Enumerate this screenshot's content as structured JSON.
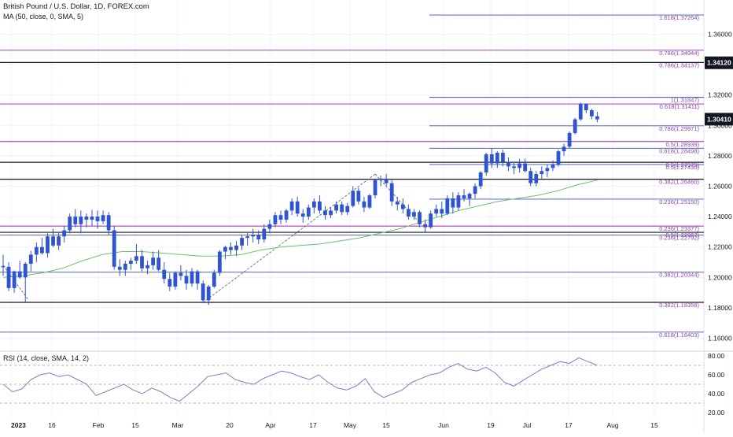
{
  "header": {
    "title": "British Pound / U.S. Dollar, 1D, FOREX.com",
    "ma_label": "MA (50, close, 0, SMA, 5)",
    "rsi_label": "RSI (14, close, SMA, 14, 2)"
  },
  "colors": {
    "candle": "#2f54d1",
    "ma": "#6fbf6f",
    "rsi": "#7b7fc6",
    "fib_line": "#9c27b0",
    "fib_text": "#8e44ad",
    "blue_line": "#3f51b5",
    "black_line": "#131722",
    "grid": "#f0f3fa",
    "axis_text": "#131722",
    "price_tag_bg": "#131722"
  },
  "chart_data": {
    "type": "candlestick",
    "ylim": [
      1.152,
      1.3825
    ],
    "y_ticks": [
      "1.36000",
      "1.34000",
      "1.32000",
      "1.30000",
      "1.28000",
      "1.26000",
      "1.24000",
      "1.22000",
      "1.20000",
      "1.18000",
      "1.16000"
    ],
    "x_ticks": [
      "2023",
      "16",
      "Feb",
      "15",
      "Mar",
      "20",
      "Apr",
      "17",
      "May",
      "15",
      "Jun",
      "19",
      "Jul",
      "17",
      "Aug",
      "15"
    ],
    "last_price": "1.30410",
    "last_price_value": 1.3041,
    "tag_price": "1.34120",
    "tag_price_value": 1.3412,
    "ohlc": [
      [
        1.2075,
        1.215,
        1.201,
        1.207
      ],
      [
        1.207,
        1.21,
        1.191,
        1.193
      ],
      [
        1.193,
        1.2045,
        1.19,
        1.204
      ],
      [
        1.204,
        1.211,
        1.199,
        1.2
      ],
      [
        1.2,
        1.21,
        1.184,
        1.209
      ],
      [
        1.209,
        1.2175,
        1.204,
        1.215
      ],
      [
        1.215,
        1.223,
        1.21,
        1.22
      ],
      [
        1.22,
        1.226,
        1.215,
        1.216
      ],
      [
        1.216,
        1.229,
        1.213,
        1.227
      ],
      [
        1.227,
        1.232,
        1.22,
        1.221
      ],
      [
        1.221,
        1.23,
        1.218,
        1.227
      ],
      [
        1.227,
        1.234,
        1.223,
        1.231
      ],
      [
        1.231,
        1.242,
        1.229,
        1.24
      ],
      [
        1.24,
        1.245,
        1.233,
        1.235
      ],
      [
        1.235,
        1.244,
        1.229,
        1.24
      ],
      [
        1.24,
        1.242,
        1.233,
        1.238
      ],
      [
        1.238,
        1.2445,
        1.234,
        1.24
      ],
      [
        1.24,
        1.244,
        1.232,
        1.237
      ],
      [
        1.237,
        1.244,
        1.235,
        1.241
      ],
      [
        1.241,
        1.243,
        1.228,
        1.231
      ],
      [
        1.231,
        1.234,
        1.205,
        1.207
      ],
      [
        1.207,
        1.212,
        1.201,
        1.205
      ],
      [
        1.205,
        1.211,
        1.201,
        1.209
      ],
      [
        1.209,
        1.213,
        1.205,
        1.211
      ],
      [
        1.211,
        1.222,
        1.209,
        1.214
      ],
      [
        1.214,
        1.218,
        1.204,
        1.206
      ],
      [
        1.206,
        1.211,
        1.202,
        1.208
      ],
      [
        1.208,
        1.217,
        1.205,
        1.213
      ],
      [
        1.213,
        1.218,
        1.204,
        1.205
      ],
      [
        1.205,
        1.21,
        1.196,
        1.199
      ],
      [
        1.199,
        1.203,
        1.191,
        1.194
      ],
      [
        1.194,
        1.204,
        1.192,
        1.203
      ],
      [
        1.203,
        1.208,
        1.198,
        1.201
      ],
      [
        1.201,
        1.205,
        1.192,
        1.196
      ],
      [
        1.196,
        1.206,
        1.194,
        1.204
      ],
      [
        1.204,
        1.205,
        1.192,
        1.196
      ],
      [
        1.196,
        1.198,
        1.183,
        1.185
      ],
      [
        1.185,
        1.195,
        1.182,
        1.194
      ],
      [
        1.194,
        1.205,
        1.193,
        1.203
      ],
      [
        1.203,
        1.218,
        1.201,
        1.217
      ],
      [
        1.217,
        1.221,
        1.212,
        1.22
      ],
      [
        1.22,
        1.223,
        1.215,
        1.218
      ],
      [
        1.218,
        1.224,
        1.214,
        1.221
      ],
      [
        1.221,
        1.228,
        1.218,
        1.226
      ],
      [
        1.226,
        1.23,
        1.221,
        1.227
      ],
      [
        1.227,
        1.232,
        1.223,
        1.228
      ],
      [
        1.228,
        1.231,
        1.222,
        1.225
      ],
      [
        1.225,
        1.235,
        1.223,
        1.232
      ],
      [
        1.232,
        1.238,
        1.229,
        1.235
      ],
      [
        1.235,
        1.243,
        1.233,
        1.241
      ],
      [
        1.241,
        1.244,
        1.235,
        1.238
      ],
      [
        1.238,
        1.245,
        1.236,
        1.244
      ],
      [
        1.244,
        1.252,
        1.241,
        1.25
      ],
      [
        1.25,
        1.253,
        1.24,
        1.242
      ],
      [
        1.242,
        1.245,
        1.236,
        1.24
      ],
      [
        1.24,
        1.248,
        1.238,
        1.246
      ],
      [
        1.246,
        1.252,
        1.242,
        1.25
      ],
      [
        1.25,
        1.254,
        1.242,
        1.244
      ],
      [
        1.244,
        1.247,
        1.238,
        1.241
      ],
      [
        1.241,
        1.246,
        1.239,
        1.244
      ],
      [
        1.244,
        1.25,
        1.242,
        1.248
      ],
      [
        1.248,
        1.25,
        1.241,
        1.243
      ],
      [
        1.243,
        1.249,
        1.241,
        1.247
      ],
      [
        1.247,
        1.26,
        1.246,
        1.257
      ],
      [
        1.257,
        1.259,
        1.248,
        1.25
      ],
      [
        1.25,
        1.253,
        1.243,
        1.246
      ],
      [
        1.246,
        1.255,
        1.245,
        1.254
      ],
      [
        1.254,
        1.265,
        1.252,
        1.264
      ],
      [
        1.264,
        1.267,
        1.26,
        1.265
      ],
      [
        1.265,
        1.268,
        1.26,
        1.262
      ],
      [
        1.262,
        1.264,
        1.247,
        1.25
      ],
      [
        1.25,
        1.253,
        1.244,
        1.248
      ],
      [
        1.248,
        1.252,
        1.242,
        1.245
      ],
      [
        1.245,
        1.248,
        1.238,
        1.24
      ],
      [
        1.24,
        1.245,
        1.238,
        1.243
      ],
      [
        1.243,
        1.244,
        1.233,
        1.235
      ],
      [
        1.235,
        1.238,
        1.23,
        1.233
      ],
      [
        1.233,
        1.244,
        1.232,
        1.242
      ],
      [
        1.242,
        1.248,
        1.24,
        1.245
      ],
      [
        1.245,
        1.25,
        1.239,
        1.242
      ],
      [
        1.242,
        1.254,
        1.241,
        1.252
      ],
      [
        1.252,
        1.256,
        1.242,
        1.246
      ],
      [
        1.246,
        1.256,
        1.244,
        1.254
      ],
      [
        1.254,
        1.258,
        1.25,
        1.252
      ],
      [
        1.252,
        1.256,
        1.247,
        1.255
      ],
      [
        1.255,
        1.262,
        1.252,
        1.26
      ],
      [
        1.26,
        1.27,
        1.258,
        1.269
      ],
      [
        1.269,
        1.282,
        1.267,
        1.281
      ],
      [
        1.281,
        1.285,
        1.272,
        1.275
      ],
      [
        1.275,
        1.283,
        1.272,
        1.282
      ],
      [
        1.282,
        1.284,
        1.273,
        1.276
      ],
      [
        1.276,
        1.279,
        1.27,
        1.273
      ],
      [
        1.273,
        1.276,
        1.268,
        1.272
      ],
      [
        1.272,
        1.278,
        1.269,
        1.275
      ],
      [
        1.275,
        1.278,
        1.269,
        1.27
      ],
      [
        1.27,
        1.272,
        1.26,
        1.262
      ],
      [
        1.262,
        1.27,
        1.26,
        1.268
      ],
      [
        1.268,
        1.273,
        1.265,
        1.27
      ],
      [
        1.27,
        1.274,
        1.266,
        1.272
      ],
      [
        1.272,
        1.277,
        1.27,
        1.274
      ],
      [
        1.274,
        1.284,
        1.273,
        1.283
      ],
      [
        1.283,
        1.288,
        1.28,
        1.286
      ],
      [
        1.286,
        1.296,
        1.285,
        1.295
      ],
      [
        1.295,
        1.305,
        1.294,
        1.304
      ],
      [
        1.304,
        1.315,
        1.303,
        1.314
      ],
      [
        1.314,
        1.3145,
        1.308,
        1.31
      ],
      [
        1.31,
        1.311,
        1.304,
        1.306
      ],
      [
        1.306,
        1.309,
        1.302,
        1.304
      ]
    ],
    "ma50": [
      1.2,
      1.201,
      1.203,
      1.206,
      1.211,
      1.215,
      1.217,
      1.217,
      1.216,
      1.215,
      1.214,
      1.214,
      1.215,
      1.218,
      1.22,
      1.221,
      1.222,
      1.224,
      1.226,
      1.229,
      1.232,
      1.236,
      1.24,
      1.244,
      1.247,
      1.25,
      1.252,
      1.254,
      1.257,
      1.261,
      1.264
    ],
    "rsi": {
      "ylim": [
        15,
        85
      ],
      "ticks": [
        "80.00",
        "60.00",
        "40.00",
        "20.00"
      ],
      "levels": [
        70,
        50,
        30
      ],
      "values": [
        50,
        42,
        45,
        55,
        60,
        62,
        58,
        60,
        55,
        50,
        38,
        42,
        46,
        50,
        44,
        40,
        46,
        42,
        36,
        32,
        40,
        48,
        58,
        60,
        62,
        55,
        52,
        50,
        56,
        60,
        64,
        62,
        58,
        55,
        60,
        52,
        46,
        44,
        48,
        56,
        42,
        36,
        40,
        44,
        52,
        56,
        60,
        62,
        68,
        72,
        66,
        64,
        68,
        62,
        52,
        48,
        54,
        60,
        66,
        70,
        74,
        72,
        78,
        74,
        70
      ]
    },
    "series": [
      {
        "name": "MA (50, close, 0, SMA, 5)"
      },
      {
        "name": "RSI (14, close, SMA, 14, 2)"
      }
    ],
    "annotations": {
      "fib_labels": [
        {
          "text": "1.618(1.37264)",
          "value": 1.37264
        },
        {
          "text": "0.786(1.34944)",
          "value": 1.34944
        },
        {
          "text": "0.786(1.34137)",
          "value": 1.34137
        },
        {
          "text": "1(1.31847)",
          "value": 1.31847
        },
        {
          "text": "0.618(1.31411)",
          "value": 1.31411
        },
        {
          "text": "0.786(1.29971)",
          "value": 1.29971
        },
        {
          "text": "0.5(1.28939)",
          "value": 1.28939
        },
        {
          "text": "0.618(1.28498)",
          "value": 1.28498
        },
        {
          "text": "0.5(1.27575)",
          "value": 1.27575
        },
        {
          "text": "0.5(1.27430)",
          "value": 1.2743
        },
        {
          "text": "0.382(1.26460)",
          "value": 1.2646
        },
        {
          "text": "0.236(1.25150)",
          "value": 1.2515
        },
        {
          "text": "0.236(1.23377)",
          "value": 1.23377
        },
        {
          "text": "0.5(1.22967)",
          "value": 1.22967
        },
        {
          "text": "0.236(1.22792)",
          "value": 1.22792
        },
        {
          "text": "0.382(1.20344)",
          "value": 1.20344
        },
        {
          "text": "0.382(1.18358)",
          "value": 1.18358
        },
        {
          "text": "0.618(1.16403)",
          "value": 1.16403
        }
      ],
      "levels": [
        {
          "value": 1.37264,
          "color": "blue",
          "start": 0.61
        },
        {
          "value": 1.34944,
          "color": "fib",
          "start": 0.0
        },
        {
          "value": 1.34137,
          "color": "black",
          "start": 0.0
        },
        {
          "value": 1.31847,
          "color": "blue",
          "start": 0.61
        },
        {
          "value": 1.31411,
          "color": "fib",
          "start": 0.0
        },
        {
          "value": 1.29971,
          "color": "blue",
          "start": 0.61
        },
        {
          "value": 1.28939,
          "color": "fib",
          "start": 0.0
        },
        {
          "value": 1.28498,
          "color": "blue",
          "start": 0.61
        },
        {
          "value": 1.27575,
          "color": "black",
          "start": 0.0
        },
        {
          "value": 1.2743,
          "color": "blue",
          "start": 0.61
        },
        {
          "value": 1.2646,
          "color": "black",
          "start": 0.0
        },
        {
          "value": 1.2515,
          "color": "blue",
          "start": 0.61
        },
        {
          "value": 1.23377,
          "color": "fib",
          "start": 0.0
        },
        {
          "value": 1.22967,
          "color": "black",
          "start": 0.0
        },
        {
          "value": 1.22792,
          "color": "blue",
          "start": 0.0
        },
        {
          "value": 1.20344,
          "color": "blue",
          "start": 0.0
        },
        {
          "value": 1.18358,
          "color": "black",
          "start": 0.0
        },
        {
          "value": 1.16403,
          "color": "blue",
          "start": 0.0
        }
      ],
      "swings": [
        [
          [
            1.208,
            0
          ],
          [
            1.1855,
            4.5
          ]
        ],
        [
          [
            1.1835,
            36
          ],
          [
            1.268,
            67
          ]
        ],
        [
          [
            1.268,
            67
          ],
          [
            1.236,
            75
          ]
        ]
      ]
    }
  }
}
